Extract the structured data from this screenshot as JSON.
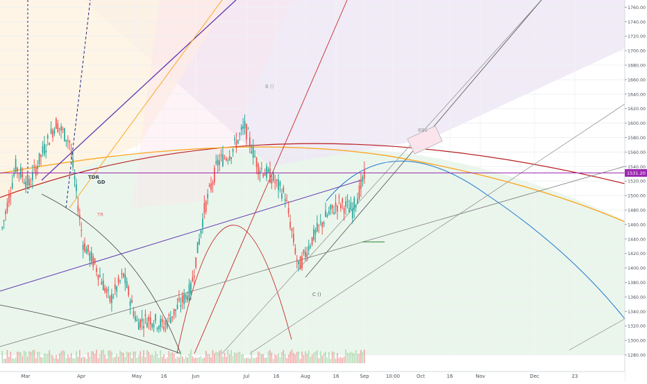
{
  "chart_data": {
    "type": "candlestick",
    "title": "",
    "xlabel": "",
    "ylabel": "",
    "y_range": [
      1280,
      1770
    ],
    "y_ticks": [
      "1760.00",
      "1740.00",
      "1720.00",
      "1700.00",
      "1680.00",
      "1660.00",
      "1640.00",
      "1620.00",
      "1600.00",
      "1580.00",
      "1560.00",
      "1540.00",
      "1520.00",
      "1500.00",
      "1480.00",
      "1460.00",
      "1440.00",
      "1420.00",
      "1400.00",
      "1380.00",
      "1360.00",
      "1340.00",
      "1320.00",
      "1300.00",
      "1280.00"
    ],
    "x_ticks": [
      "Mar",
      "Apr",
      "May",
      "16",
      "Jun",
      "Jul",
      "16",
      "Aug",
      "16",
      "Sep",
      "10:00",
      "Oct",
      "16",
      "Nov",
      "Dec",
      "23"
    ],
    "current_price": "1531.20",
    "current_price_value": 1531.2,
    "price_path": [
      {
        "t": "Mar",
        "close": 1455
      },
      {
        "t": "Mar",
        "close": 1540
      },
      {
        "t": "Mar",
        "close": 1515
      },
      {
        "t": "Mar",
        "close": 1560
      },
      {
        "t": "Mar",
        "close": 1600
      },
      {
        "t": "Mar",
        "close": 1575
      },
      {
        "t": "Apr",
        "close": 1435
      },
      {
        "t": "Apr",
        "close": 1400
      },
      {
        "t": "Apr",
        "close": 1355
      },
      {
        "t": "Apr",
        "close": 1390
      },
      {
        "t": "May",
        "close": 1325
      },
      {
        "t": "May",
        "close": 1330
      },
      {
        "t": "16",
        "close": 1320
      },
      {
        "t": "16",
        "close": 1345
      },
      {
        "t": "Jun",
        "close": 1370
      },
      {
        "t": "Jun",
        "close": 1480
      },
      {
        "t": "Jun",
        "close": 1545
      },
      {
        "t": "Jul",
        "close": 1560
      },
      {
        "t": "Jul",
        "close": 1595
      },
      {
        "t": "16",
        "close": 1540
      },
      {
        "t": "16",
        "close": 1525
      },
      {
        "t": "Aug",
        "close": 1500
      },
      {
        "t": "Aug",
        "close": 1400
      },
      {
        "t": "Aug",
        "close": 1440
      },
      {
        "t": "16",
        "close": 1470
      },
      {
        "t": "16",
        "close": 1490
      },
      {
        "t": "Sep",
        "close": 1480
      },
      {
        "t": "Sep",
        "close": 1531.2
      }
    ],
    "annotations": [
      "TDR",
      "GD",
      "TR",
      "B ()",
      "C ()",
      "BB1"
    ],
    "grid": true,
    "colors": {
      "up": "#26a69a",
      "down": "#ef5350",
      "price_line": "#9c27b0",
      "arc_red": "#b71c1c",
      "arc_orange": "#f9a825",
      "arc_blue": "#1976d2",
      "fill_green": "#e8f5e9",
      "fill_lavender": "#ede7f6",
      "fill_peach": "#fff3e0"
    }
  }
}
